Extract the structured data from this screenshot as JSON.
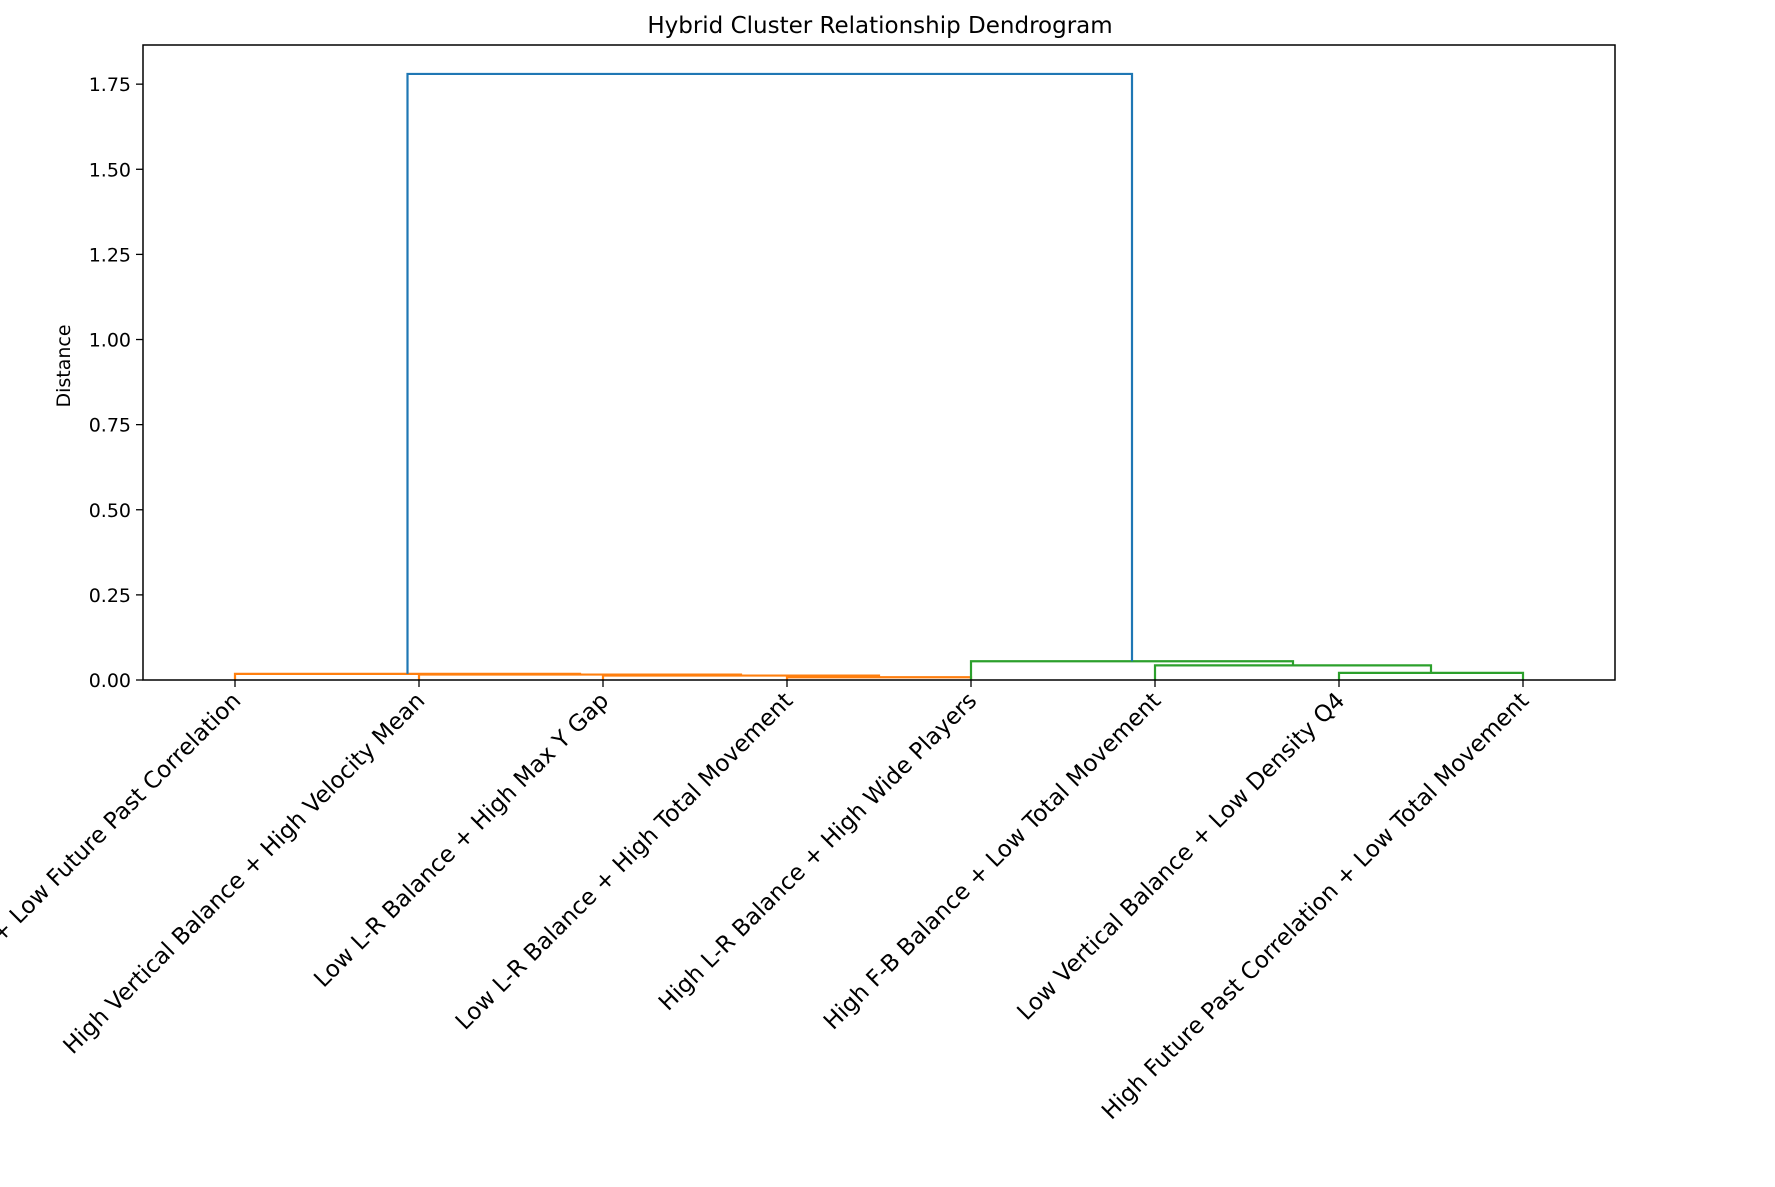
{
  "chart_data": {
    "type": "dendrogram",
    "title": "Hybrid Cluster Relationship Dendrogram",
    "xlabel": "",
    "ylabel": "Distance",
    "ylim": [
      0,
      1.865
    ],
    "yticks": [
      0.0,
      0.25,
      0.5,
      0.75,
      1.0,
      1.25,
      1.5,
      1.75
    ],
    "ytick_labels": [
      "0.00",
      "0.25",
      "0.50",
      "0.75",
      "1.00",
      "1.25",
      "1.50",
      "1.75"
    ],
    "grid": false,
    "leaf_spacing": 10,
    "x_range": [
      0,
      80
    ],
    "leaves": [
      "Low Wide Players + Low Future Past Correlation",
      "High Vertical Balance + High Velocity Mean",
      "Low L-R Balance + High Max Y Gap",
      "Low L-R Balance + High Total Movement",
      "High L-R Balance + High Wide Players",
      "High F-B Balance + Low Total Movement",
      "Low Vertical Balance + Low Density Q4",
      "High Future Past Correlation + Low Total Movement"
    ],
    "colors": {
      "orange": "#ff7f0e",
      "green": "#2ca02c",
      "blue": "#1f77b4"
    },
    "links": [
      {
        "icoord": [
          35,
          35,
          45,
          45
        ],
        "dcoord": [
          0.0,
          0.008,
          0.008,
          0.0
        ],
        "color": "#ff7f0e"
      },
      {
        "icoord": [
          25,
          25,
          40,
          40
        ],
        "dcoord": [
          0.0,
          0.013,
          0.013,
          0.008
        ],
        "color": "#ff7f0e"
      },
      {
        "icoord": [
          15,
          15,
          32.5,
          32.5
        ],
        "dcoord": [
          0.0,
          0.016,
          0.016,
          0.013
        ],
        "color": "#ff7f0e"
      },
      {
        "icoord": [
          5,
          5,
          23.75,
          23.75
        ],
        "dcoord": [
          0.0,
          0.018,
          0.018,
          0.016
        ],
        "color": "#ff7f0e"
      },
      {
        "icoord": [
          65,
          65,
          75,
          75
        ],
        "dcoord": [
          0.0,
          0.021,
          0.021,
          0.0
        ],
        "color": "#2ca02c"
      },
      {
        "icoord": [
          55,
          55,
          70,
          70
        ],
        "dcoord": [
          0.0,
          0.043,
          0.043,
          0.021
        ],
        "color": "#2ca02c"
      },
      {
        "icoord": [
          45,
          45,
          62.5,
          62.5
        ],
        "dcoord": [
          0.0,
          0.055,
          0.055,
          0.043
        ],
        "color": "#2ca02c"
      },
      {
        "icoord": [
          14.375,
          14.375,
          53.75,
          53.75
        ],
        "dcoord": [
          0.018,
          1.78,
          1.78,
          0.055
        ],
        "color": "#1f77b4"
      }
    ]
  }
}
